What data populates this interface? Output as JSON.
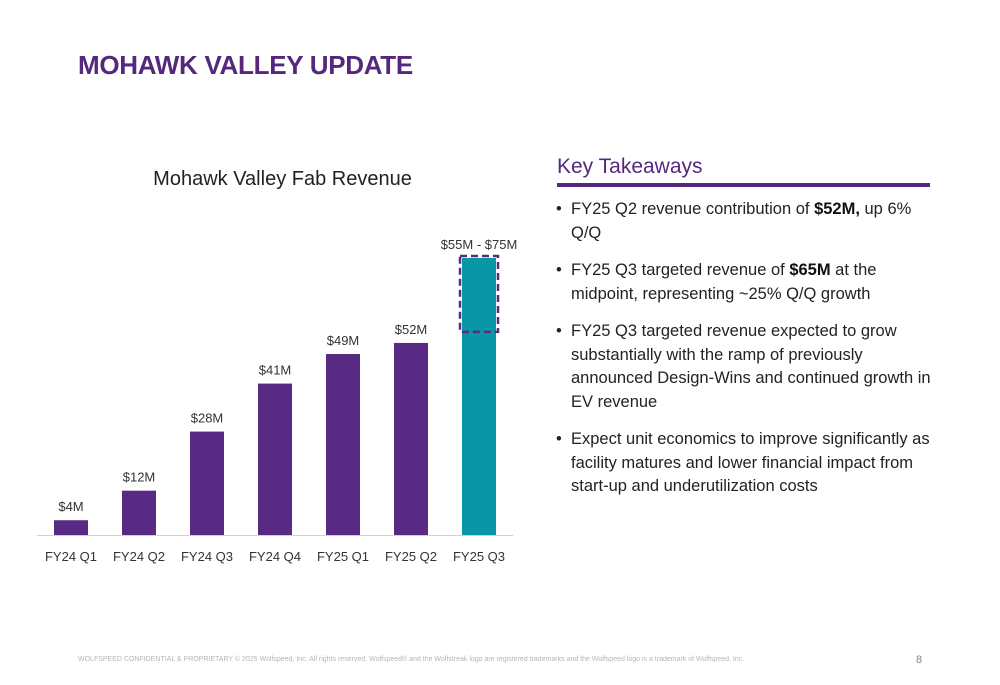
{
  "slide": {
    "title": "MOHAWK VALLEY UPDATE",
    "footer": "WOLFSPEED CONFIDENTIAL & PROPRIETARY © 2025 Wolfspeed, Inc. All rights reserved. Wolfspeed® and the Wolfstreak logo are registered trademarks and the Wolfspeed logo is a trademark of Wolfspeed, Inc.",
    "page_number": "8"
  },
  "chart_data": {
    "type": "bar",
    "title": "Mohawk Valley Fab Revenue",
    "xlabel": "",
    "ylabel": "",
    "categories": [
      "FY24 Q1",
      "FY24 Q2",
      "FY24 Q3",
      "FY24 Q4",
      "FY25 Q1",
      "FY25 Q2",
      "FY25 Q3"
    ],
    "values": [
      4,
      12,
      28,
      41,
      49,
      52,
      75
    ],
    "value_labels": [
      "$4M",
      "$12M",
      "$28M",
      "$41M",
      "$49M",
      "$52M",
      "$55M - $75M"
    ],
    "units": "$M",
    "ylim": [
      0,
      75
    ],
    "grid": false,
    "legend": "none",
    "target_range": {
      "category": "FY25 Q3",
      "low": 55,
      "high": 75,
      "label": "$55M - $75M"
    },
    "colors": {
      "actual": "#582a83",
      "target": "#0a97a5",
      "range_outline": "#582a83"
    }
  },
  "takeaways": {
    "header": "Key Takeaways",
    "items": [
      {
        "pre": "FY25 Q2 revenue contribution of ",
        "bold": "$52M,",
        "post": " up 6% Q/Q"
      },
      {
        "pre": "FY25 Q3 targeted revenue of ",
        "bold": "$65M",
        "post": " at the midpoint, representing ~25% Q/Q growth"
      },
      {
        "pre": "FY25 Q3 targeted revenue expected to grow substantially with the ramp of previously announced Design-Wins and continued growth in EV revenue",
        "bold": "",
        "post": ""
      },
      {
        "pre": "Expect unit economics to improve significantly as facility matures and lower financial impact from start-up and underutilization costs",
        "bold": "",
        "post": ""
      }
    ],
    "accent_color": "#55287f"
  }
}
